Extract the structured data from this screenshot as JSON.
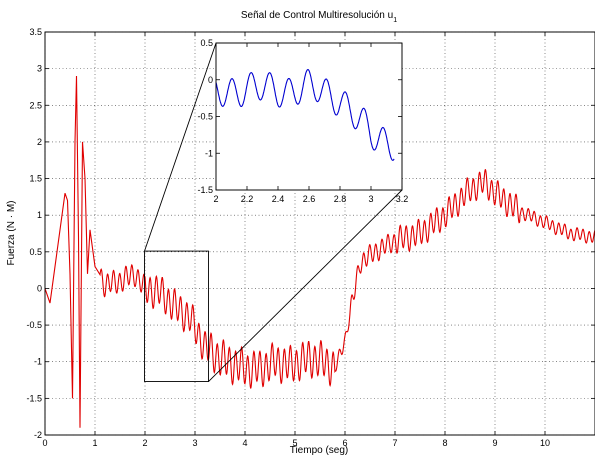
{
  "chart_data": [
    {
      "id": "main",
      "type": "line",
      "title": "Señal de Control Multiresolución u",
      "title_subscript": "1",
      "xlabel": "Tiempo (seg)",
      "ylabel": "Fuerza (N · M)",
      "xlim": [
        0,
        11
      ],
      "ylim": [
        -2,
        3.5
      ],
      "xticks": [
        0,
        1,
        2,
        3,
        4,
        5,
        6,
        7,
        8,
        9,
        10
      ],
      "yticks": [
        -2,
        -1.5,
        -1,
        -0.5,
        0,
        0.5,
        1,
        1.5,
        2,
        2.5,
        3,
        3.5
      ],
      "grid": true,
      "line_color": "#e00000",
      "series": [
        {
          "x": [
            0,
            0.1,
            0.2,
            0.3,
            0.4,
            0.45,
            0.5,
            0.55,
            0.6,
            0.63,
            0.67,
            0.7,
            0.75,
            0.8,
            0.85,
            0.9,
            1.0,
            1.2,
            1.5,
            1.8,
            2.0,
            2.3,
            2.6,
            2.9,
            3.2,
            3.5,
            3.8,
            4.1,
            4.3,
            4.6,
            4.9,
            5.1,
            5.3,
            5.6,
            5.8,
            6.0,
            6.3,
            6.6,
            7.0,
            7.5,
            8.0,
            8.5,
            8.8,
            9.0,
            9.5,
            10.0,
            10.5,
            11.0
          ],
          "y": [
            0.0,
            -0.2,
            0.3,
            0.8,
            1.3,
            1.2,
            0.2,
            -1.5,
            2.0,
            2.9,
            0.7,
            -1.9,
            2.0,
            1.5,
            0.2,
            0.8,
            0.3,
            0.05,
            0.1,
            0.2,
            0.0,
            -0.05,
            -0.25,
            -0.4,
            -0.8,
            -0.95,
            -1.05,
            -1.1,
            -1.1,
            -1.0,
            -1.05,
            -1.0,
            -0.95,
            -1.0,
            -1.1,
            -0.7,
            0.35,
            0.5,
            0.65,
            0.75,
            1.0,
            1.35,
            1.45,
            1.3,
            1.05,
            0.9,
            0.75,
            0.7
          ]
        }
      ],
      "zoom_rect": {
        "x": [
          1.99,
          3.27
        ],
        "y": [
          -1.27,
          0.51
        ]
      }
    },
    {
      "id": "inset",
      "type": "line",
      "xlim": [
        2,
        3.2
      ],
      "ylim": [
        -1.5,
        0.5
      ],
      "xticks": [
        2,
        2.2,
        2.4,
        2.6,
        2.8,
        3,
        3.2
      ],
      "yticks": [
        -1.5,
        -1,
        -0.5,
        0,
        0.5
      ],
      "line_color": "#0000d0",
      "series": [
        {
          "x": [
            2.0,
            2.2,
            2.4,
            2.6,
            2.8,
            3.0,
            3.2
          ],
          "y": [
            -0.2,
            -0.1,
            -0.15,
            -0.1,
            -0.25,
            -0.75,
            -0.9
          ]
        }
      ]
    }
  ]
}
